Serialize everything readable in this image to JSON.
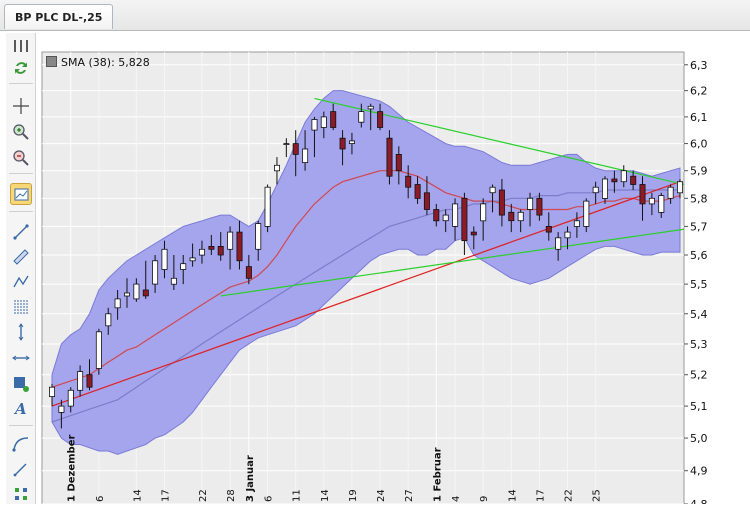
{
  "tab": {
    "title": "BP PLC DL-,25"
  },
  "legend": {
    "label": "SMA (38): 5,828"
  },
  "toolbar": {
    "icons": [
      "chart-bars-icon",
      "refresh-icon",
      "crosshair-icon",
      "zoom-in-icon",
      "zoom-out-icon",
      "chart-overlay-icon",
      "line-tool-icon",
      "ruler-icon",
      "polyline-icon",
      "fibonacci-icon",
      "vertical-line-icon",
      "horizontal-line-icon",
      "rectangle-icon",
      "text-tool-icon",
      "arc-icon",
      "pen-icon",
      "grid-icon"
    ]
  },
  "colors": {
    "band_fill": "#a5a5ee",
    "band_edge": "#7a7ad8",
    "sma_short": "#d04850",
    "sma_long": "#7c7cc8",
    "bull_body": "#ffffff",
    "bear_body": "#8a1c28",
    "trend_red": "#e02020",
    "trend_green": "#28d028"
  },
  "chart_data": {
    "type": "candlestick",
    "title": "BP PLC DL-,25",
    "ylim": [
      4.8,
      6.35
    ],
    "y_ticks": [
      "4,8",
      "4,9",
      "5,0",
      "5,1",
      "5,2",
      "5,3",
      "5,4",
      "5,5",
      "5,6",
      "5,7",
      "5,8",
      "5,9",
      "6,0",
      "6,1",
      "6,2",
      "6,3"
    ],
    "y_tick_values": [
      4.8,
      4.9,
      5.0,
      5.1,
      5.2,
      5.3,
      5.4,
      5.5,
      5.6,
      5.7,
      5.8,
      5.9,
      6.0,
      6.1,
      6.2,
      6.3
    ],
    "y_scale": "log",
    "x_ticks": [
      {
        "index": 2,
        "label": "1 Dezember",
        "month": true
      },
      {
        "index": 5,
        "label": "6"
      },
      {
        "index": 9,
        "label": "14"
      },
      {
        "index": 12,
        "label": "17"
      },
      {
        "index": 16,
        "label": "22"
      },
      {
        "index": 19,
        "label": "28"
      },
      {
        "index": 21,
        "label": "3 Januar",
        "month": true
      },
      {
        "index": 23,
        "label": "6"
      },
      {
        "index": 26,
        "label": "11"
      },
      {
        "index": 29,
        "label": "14"
      },
      {
        "index": 32,
        "label": "19"
      },
      {
        "index": 35,
        "label": "24"
      },
      {
        "index": 38,
        "label": "27"
      },
      {
        "index": 41,
        "label": "1 Februar",
        "month": true
      },
      {
        "index": 43,
        "label": "4"
      },
      {
        "index": 46,
        "label": "9"
      },
      {
        "index": 49,
        "label": "14"
      },
      {
        "index": 52,
        "label": "17"
      },
      {
        "index": 55,
        "label": "22"
      },
      {
        "index": 58,
        "label": "25"
      }
    ],
    "candles": [
      [
        5.13,
        5.17,
        5.1,
        5.16
      ],
      [
        5.08,
        5.12,
        5.03,
        5.1
      ],
      [
        5.1,
        5.16,
        5.08,
        5.15
      ],
      [
        5.15,
        5.23,
        5.13,
        5.21
      ],
      [
        5.2,
        5.25,
        5.15,
        5.16
      ],
      [
        5.22,
        5.35,
        5.2,
        5.34
      ],
      [
        5.36,
        5.42,
        5.33,
        5.4
      ],
      [
        5.42,
        5.48,
        5.38,
        5.45
      ],
      [
        5.46,
        5.52,
        5.42,
        5.47
      ],
      [
        5.45,
        5.52,
        5.44,
        5.5
      ],
      [
        5.48,
        5.58,
        5.45,
        5.46
      ],
      [
        5.5,
        5.6,
        5.47,
        5.58
      ],
      [
        5.55,
        5.65,
        5.52,
        5.62
      ],
      [
        5.5,
        5.6,
        5.48,
        5.52
      ],
      [
        5.55,
        5.6,
        5.5,
        5.57
      ],
      [
        5.58,
        5.64,
        5.56,
        5.59
      ],
      [
        5.6,
        5.65,
        5.57,
        5.62
      ],
      [
        5.63,
        5.67,
        5.6,
        5.62
      ],
      [
        5.63,
        5.68,
        5.58,
        5.6
      ],
      [
        5.62,
        5.7,
        5.55,
        5.68
      ],
      [
        5.68,
        5.72,
        5.55,
        5.58
      ],
      [
        5.56,
        5.6,
        5.5,
        5.52
      ],
      [
        5.62,
        5.72,
        5.58,
        5.71
      ],
      [
        5.7,
        5.85,
        5.68,
        5.84
      ],
      [
        5.9,
        5.95,
        5.85,
        5.92
      ],
      [
        6.0,
        6.02,
        5.95,
        6.0
      ],
      [
        6.0,
        6.05,
        5.88,
        5.96
      ],
      [
        5.93,
        6.05,
        5.9,
        5.98
      ],
      [
        6.05,
        6.1,
        5.95,
        6.09
      ],
      [
        6.06,
        6.12,
        6.02,
        6.1
      ],
      [
        6.12,
        6.15,
        6.05,
        6.06
      ],
      [
        6.02,
        6.05,
        5.92,
        5.98
      ],
      [
        6.0,
        6.04,
        5.96,
        6.01
      ],
      [
        6.08,
        6.15,
        6.06,
        6.12
      ],
      [
        6.13,
        6.15,
        6.05,
        6.14
      ],
      [
        6.12,
        6.15,
        6.05,
        6.06
      ],
      [
        6.02,
        6.05,
        5.85,
        5.88
      ],
      [
        5.96,
        5.99,
        5.85,
        5.9
      ],
      [
        5.88,
        5.92,
        5.8,
        5.84
      ],
      [
        5.85,
        5.88,
        5.78,
        5.8
      ],
      [
        5.82,
        5.88,
        5.74,
        5.76
      ],
      [
        5.76,
        5.78,
        5.7,
        5.72
      ],
      [
        5.72,
        5.76,
        5.68,
        5.74
      ],
      [
        5.7,
        5.8,
        5.65,
        5.78
      ],
      [
        5.8,
        5.82,
        5.6,
        5.65
      ],
      [
        5.68,
        5.7,
        5.62,
        5.67
      ],
      [
        5.72,
        5.8,
        5.65,
        5.78
      ],
      [
        5.82,
        5.85,
        5.75,
        5.84
      ],
      [
        5.83,
        5.87,
        5.7,
        5.74
      ],
      [
        5.75,
        5.78,
        5.68,
        5.72
      ],
      [
        5.72,
        5.76,
        5.68,
        5.75
      ],
      [
        5.76,
        5.82,
        5.7,
        5.8
      ],
      [
        5.8,
        5.82,
        5.72,
        5.74
      ],
      [
        5.7,
        5.75,
        5.65,
        5.68
      ],
      [
        5.62,
        5.68,
        5.58,
        5.66
      ],
      [
        5.66,
        5.7,
        5.62,
        5.68
      ],
      [
        5.7,
        5.75,
        5.66,
        5.72
      ],
      [
        5.7,
        5.8,
        5.68,
        5.79
      ],
      [
        5.82,
        5.86,
        5.78,
        5.84
      ],
      [
        5.8,
        5.88,
        5.78,
        5.87
      ],
      [
        5.87,
        5.9,
        5.82,
        5.86
      ],
      [
        5.86,
        5.92,
        5.84,
        5.9
      ],
      [
        5.88,
        5.9,
        5.83,
        5.85
      ],
      [
        5.85,
        5.88,
        5.72,
        5.78
      ],
      [
        5.78,
        5.82,
        5.74,
        5.8
      ],
      [
        5.75,
        5.82,
        5.73,
        5.81
      ],
      [
        5.8,
        5.85,
        5.78,
        5.84
      ],
      [
        5.82,
        5.87,
        5.8,
        5.86
      ]
    ],
    "sma_short": [
      5.16,
      5.17,
      5.18,
      5.19,
      5.2,
      5.22,
      5.24,
      5.26,
      5.28,
      5.29,
      5.31,
      5.33,
      5.35,
      5.37,
      5.39,
      5.41,
      5.43,
      5.45,
      5.47,
      5.49,
      5.5,
      5.51,
      5.53,
      5.56,
      5.6,
      5.65,
      5.7,
      5.74,
      5.78,
      5.81,
      5.84,
      5.86,
      5.87,
      5.88,
      5.89,
      5.9,
      5.9,
      5.9,
      5.89,
      5.88,
      5.86,
      5.84,
      5.82,
      5.81,
      5.8,
      5.79,
      5.79,
      5.79,
      5.78,
      5.77,
      5.76,
      5.76,
      5.76,
      5.76,
      5.76,
      5.76,
      5.77,
      5.77,
      5.78,
      5.79,
      5.79,
      5.8,
      5.8,
      5.79,
      5.79,
      5.79,
      5.8,
      5.81
    ],
    "sma_long": [
      5.05,
      5.06,
      5.07,
      5.08,
      5.09,
      5.1,
      5.11,
      5.12,
      5.14,
      5.16,
      5.18,
      5.2,
      5.22,
      5.24,
      5.26,
      5.28,
      5.3,
      5.32,
      5.34,
      5.36,
      5.38,
      5.4,
      5.42,
      5.44,
      5.46,
      5.48,
      5.5,
      5.52,
      5.54,
      5.56,
      5.58,
      5.6,
      5.62,
      5.64,
      5.66,
      5.68,
      5.7,
      5.71,
      5.72,
      5.73,
      5.74,
      5.75,
      5.76,
      5.76,
      5.77,
      5.78,
      5.78,
      5.79,
      5.79,
      5.8,
      5.8,
      5.8,
      5.81,
      5.81,
      5.81,
      5.82,
      5.82,
      5.82,
      5.82,
      5.83,
      5.83,
      5.83,
      5.83,
      5.83,
      5.83,
      5.83,
      5.83,
      5.83
    ],
    "band_upper": [
      5.2,
      5.3,
      5.33,
      5.35,
      5.4,
      5.48,
      5.52,
      5.55,
      5.58,
      5.6,
      5.62,
      5.64,
      5.66,
      5.68,
      5.7,
      5.71,
      5.72,
      5.73,
      5.74,
      5.74,
      5.72,
      5.7,
      5.72,
      5.78,
      5.85,
      5.92,
      6.0,
      6.08,
      6.13,
      6.17,
      6.2,
      6.2,
      6.19,
      6.18,
      6.17,
      6.16,
      6.14,
      6.11,
      6.08,
      6.06,
      6.04,
      6.02,
      6.0,
      5.99,
      5.99,
      5.98,
      5.97,
      5.95,
      5.93,
      5.92,
      5.92,
      5.92,
      5.93,
      5.94,
      5.95,
      5.96,
      5.96,
      5.93,
      5.91,
      5.9,
      5.9,
      5.9,
      5.9,
      5.89,
      5.88,
      5.89,
      5.9,
      5.91
    ],
    "band_lower": [
      5.05,
      5.0,
      4.98,
      4.98,
      4.97,
      4.96,
      4.96,
      4.95,
      4.96,
      4.97,
      4.98,
      5.0,
      5.01,
      5.03,
      5.05,
      5.08,
      5.12,
      5.16,
      5.2,
      5.24,
      5.28,
      5.3,
      5.32,
      5.33,
      5.34,
      5.35,
      5.36,
      5.38,
      5.4,
      5.43,
      5.46,
      5.49,
      5.52,
      5.55,
      5.58,
      5.6,
      5.61,
      5.62,
      5.62,
      5.6,
      5.6,
      5.62,
      5.62,
      5.65,
      5.66,
      5.6,
      5.58,
      5.56,
      5.54,
      5.52,
      5.51,
      5.5,
      5.51,
      5.52,
      5.54,
      5.56,
      5.58,
      5.6,
      5.62,
      5.63,
      5.63,
      5.62,
      5.61,
      5.6,
      5.6,
      5.61,
      5.61,
      5.61
    ],
    "trendlines": [
      {
        "color": "red",
        "from": {
          "index": 0,
          "value": 5.1
        },
        "to": {
          "index": 67,
          "value": 5.86
        }
      },
      {
        "color": "green",
        "from": {
          "index": 18,
          "value": 5.46
        },
        "to": {
          "index": 72,
          "value": 5.69
        }
      },
      {
        "color": "green",
        "from": {
          "index": 28,
          "value": 6.17
        },
        "to": {
          "index": 72,
          "value": 5.85
        }
      }
    ]
  }
}
